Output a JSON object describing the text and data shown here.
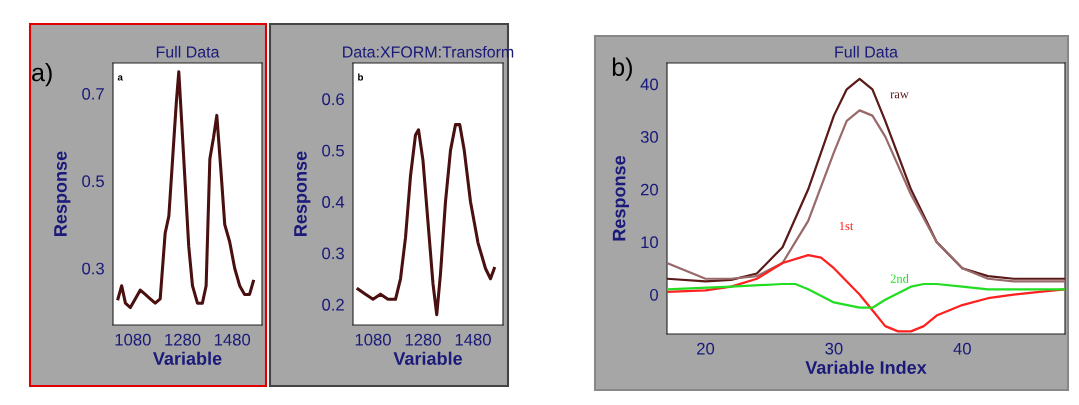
{
  "chart_data": [
    {
      "type": "line",
      "title": "Full Data",
      "xlabel": "Variable",
      "ylabel": "Response",
      "annotations": [
        "a)",
        "a"
      ],
      "xlim": [
        1000,
        1600
      ],
      "xticks": [
        1080,
        1280,
        1480
      ],
      "ylim": [
        0.17,
        0.77
      ],
      "yticks": [
        0.3,
        0.5,
        0.7
      ],
      "grid": false,
      "legend": false,
      "series": [
        {
          "color": "#4a0f0f",
          "x": [
            1020,
            1035,
            1050,
            1070,
            1090,
            1110,
            1130,
            1150,
            1170,
            1190,
            1210,
            1225,
            1240,
            1255,
            1265,
            1275,
            1290,
            1305,
            1320,
            1340,
            1360,
            1375,
            1390,
            1405,
            1418,
            1435,
            1450,
            1470,
            1490,
            1510,
            1530,
            1550,
            1565
          ],
          "values": [
            0.23,
            0.26,
            0.22,
            0.21,
            0.23,
            0.25,
            0.24,
            0.23,
            0.22,
            0.23,
            0.38,
            0.42,
            0.55,
            0.68,
            0.75,
            0.65,
            0.5,
            0.35,
            0.26,
            0.22,
            0.22,
            0.26,
            0.55,
            0.6,
            0.65,
            0.52,
            0.4,
            0.36,
            0.3,
            0.26,
            0.24,
            0.24,
            0.27
          ]
        }
      ]
    },
    {
      "type": "line",
      "title": "Data:XFORM:Transform",
      "xlabel": "Variable",
      "ylabel": "Response",
      "annotations": [
        "b"
      ],
      "xlim": [
        1000,
        1600
      ],
      "xticks": [
        1080,
        1280,
        1480
      ],
      "ylim": [
        0.16,
        0.67
      ],
      "yticks": [
        0.2,
        0.3,
        0.4,
        0.5,
        0.6
      ],
      "grid": false,
      "legend": false,
      "series": [
        {
          "color": "#4a0f0f",
          "x": [
            1020,
            1050,
            1080,
            1110,
            1140,
            1170,
            1190,
            1210,
            1230,
            1250,
            1262,
            1280,
            1300,
            1320,
            1335,
            1350,
            1370,
            1390,
            1410,
            1427,
            1445,
            1470,
            1500,
            1530,
            1550,
            1565
          ],
          "values": [
            0.23,
            0.22,
            0.21,
            0.22,
            0.21,
            0.21,
            0.25,
            0.33,
            0.45,
            0.53,
            0.54,
            0.48,
            0.36,
            0.24,
            0.18,
            0.26,
            0.4,
            0.5,
            0.55,
            0.55,
            0.5,
            0.4,
            0.32,
            0.27,
            0.25,
            0.27
          ]
        }
      ]
    },
    {
      "type": "line",
      "title": "Full Data",
      "xlabel": "Variable Index",
      "ylabel": "Response",
      "annotations": [
        "b)"
      ],
      "xlim": [
        17,
        48
      ],
      "xticks": [
        20,
        30,
        40
      ],
      "ylim": [
        -7.5,
        44
      ],
      "yticks": [
        0,
        10,
        20,
        30,
        40
      ],
      "grid": false,
      "legend": false,
      "series": [
        {
          "name": "raw",
          "color": "#5a1a1a",
          "x": [
            17,
            20,
            22,
            24,
            26,
            28,
            30,
            31,
            32,
            33,
            34,
            36,
            38,
            40,
            42,
            44,
            46,
            48
          ],
          "values": [
            3,
            2.5,
            2.8,
            4,
            9,
            20,
            34,
            39,
            41,
            39,
            33,
            20,
            10,
            5,
            3.5,
            3,
            3,
            3
          ]
        },
        {
          "color": "#9a6a6a",
          "x": [
            17,
            20,
            22,
            24,
            26,
            28,
            30,
            31,
            32,
            33,
            34,
            36,
            38,
            40,
            42,
            44,
            46,
            48
          ],
          "values": [
            6,
            3,
            3,
            3.5,
            6,
            14,
            27,
            33,
            35,
            34,
            30,
            19,
            10,
            5,
            3,
            2.5,
            2.5,
            2.5
          ]
        },
        {
          "name": "1st",
          "color": "#ff2020",
          "x": [
            17,
            20,
            22,
            24,
            26,
            28,
            29,
            30,
            32,
            33,
            34,
            35,
            36,
            37,
            38,
            40,
            42,
            44,
            46,
            48
          ],
          "values": [
            0.5,
            0.8,
            1.5,
            3,
            6,
            7.5,
            7,
            5,
            0,
            -3,
            -6,
            -7,
            -7,
            -6,
            -4,
            -2,
            -0.7,
            0,
            0.5,
            1
          ]
        },
        {
          "name": "2nd",
          "color": "#22dd22",
          "x": [
            17,
            22,
            26,
            27,
            28,
            30,
            32,
            33,
            34,
            36,
            37,
            38,
            40,
            42,
            44,
            48
          ],
          "values": [
            1,
            1.5,
            2,
            2,
            1,
            -1.5,
            -2.5,
            -2.5,
            -1,
            1.5,
            2,
            2,
            1.5,
            1,
            1,
            1
          ]
        }
      ]
    }
  ]
}
